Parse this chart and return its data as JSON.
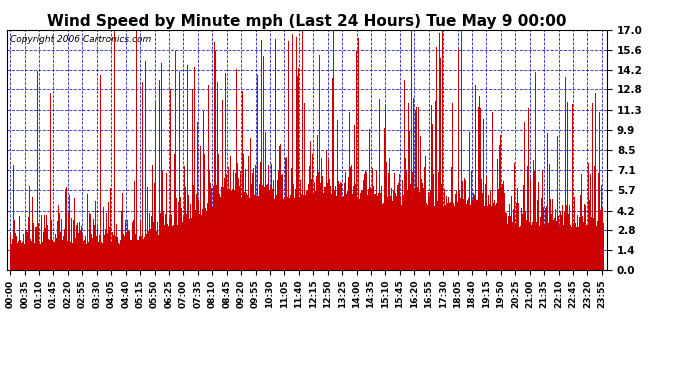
{
  "title": "Wind Speed by Minute mph (Last 24 Hours) Tue May 9 00:00",
  "copyright": "Copyright 2006 Cartronics.com",
  "yticks": [
    0.0,
    1.4,
    2.8,
    4.2,
    5.7,
    7.1,
    8.5,
    9.9,
    11.3,
    12.8,
    14.2,
    15.6,
    17.0
  ],
  "ylim": [
    0.0,
    17.0
  ],
  "bar_color": "#cc0000",
  "grid_color": "#0000bb",
  "bg_color": "#ffffff",
  "plot_bg_color": "#ffffff",
  "title_fontsize": 11,
  "copyright_fontsize": 6.5,
  "ytick_fontsize": 7.5,
  "xtick_fontsize": 6.5,
  "total_minutes": 1440,
  "xtick_step": 35,
  "seed": 99
}
